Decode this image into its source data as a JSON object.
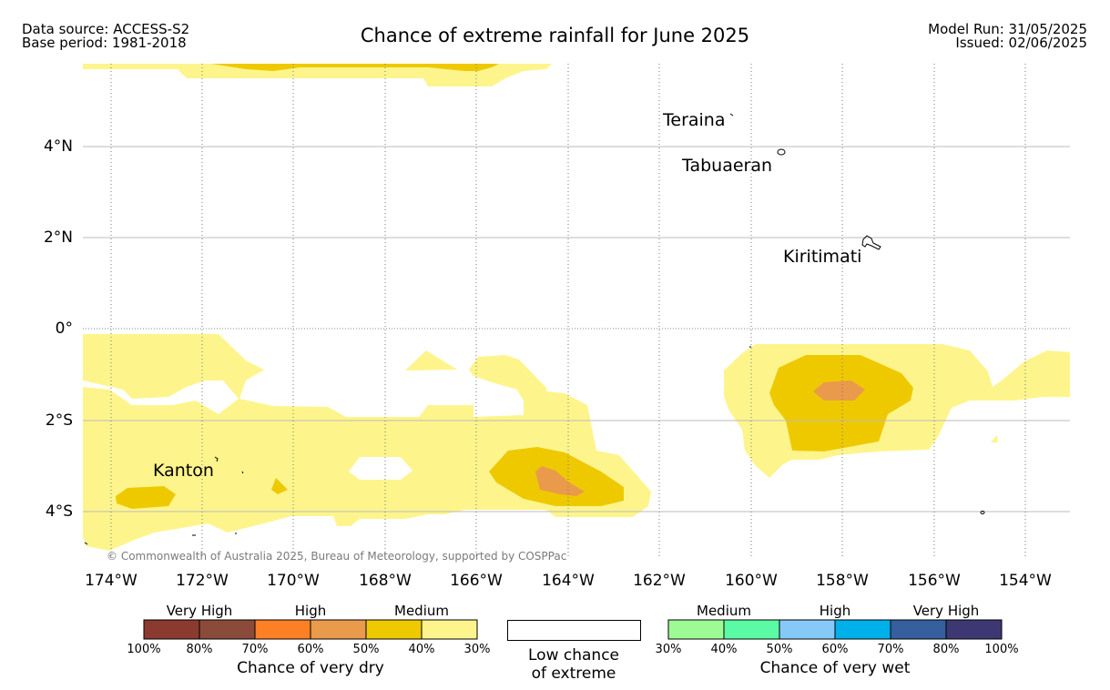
{
  "header": {
    "data_source": "Data source: ACCESS-S2",
    "base_period": "Base period: 1981-2018",
    "title": "Chance of extreme rainfall for June 2025",
    "model_run": "Model Run: 31/05/2025",
    "issued": "Issued: 02/06/2025"
  },
  "map": {
    "lat_labels": [
      "4°N",
      "2°N",
      "0°",
      "2°S",
      "4°S"
    ],
    "lon_labels": [
      "174°W",
      "172°W",
      "170°W",
      "168°W",
      "166°W",
      "164°W",
      "162°W",
      "160°W",
      "158°W",
      "156°W",
      "154°W"
    ],
    "places": [
      "Teraina",
      "Tabuaeran",
      "Kiritimati",
      "Kanton"
    ],
    "copyright": "© Commonwealth of Australia 2025, Bureau of Meteorology, supported by COSPPac",
    "colors": {
      "dry_medium_30_40": "#fdf58c",
      "dry_medium_40_50": "#eec900",
      "dry_high_50_60": "#ea9a4b"
    }
  },
  "legend": {
    "dry": {
      "headings": [
        "Very High",
        "High",
        "Medium"
      ],
      "ticks": [
        "100%",
        "80%",
        "70%",
        "60%",
        "50%",
        "40%",
        "30%"
      ],
      "caption": "Chance of very dry",
      "colors": [
        "#8b3a30",
        "#8b4b3a",
        "#fd8024",
        "#ea9a4b",
        "#eec900",
        "#fdf58c"
      ]
    },
    "low": {
      "line1": "Low chance",
      "line2": "of extreme"
    },
    "wet": {
      "headings": [
        "Medium",
        "High",
        "Very High"
      ],
      "ticks": [
        "30%",
        "40%",
        "50%",
        "60%",
        "70%",
        "80%",
        "100%"
      ],
      "caption": "Chance of very wet",
      "colors": [
        "#9efb93",
        "#5bfba5",
        "#86c9f9",
        "#00b0ea",
        "#355f9d",
        "#3d3874"
      ]
    }
  }
}
